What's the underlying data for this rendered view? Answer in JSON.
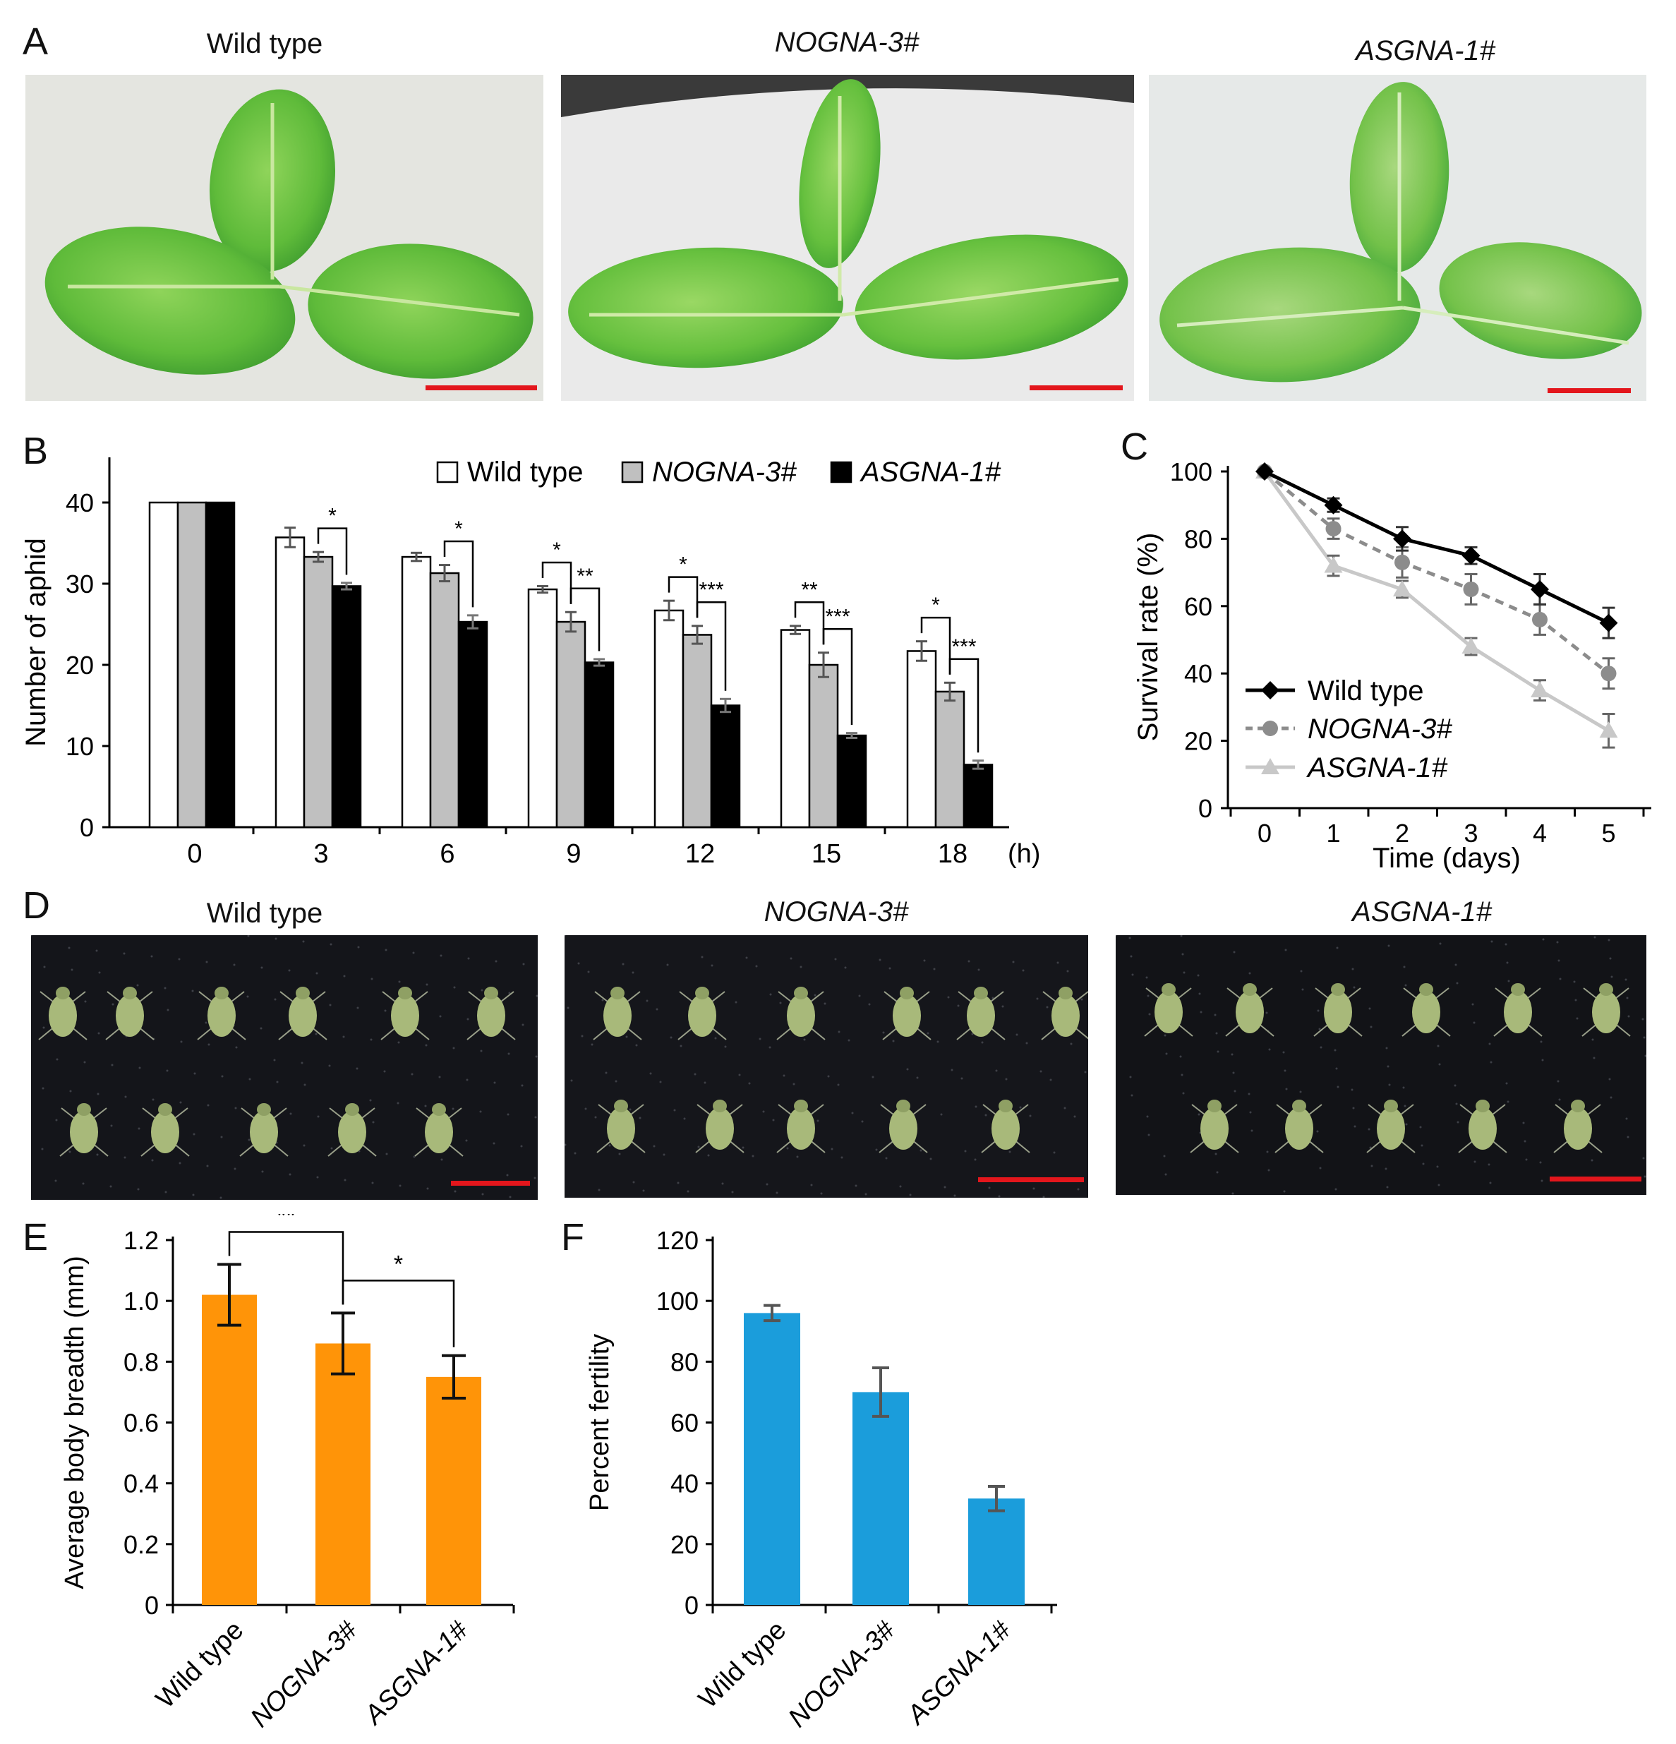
{
  "panels": {
    "A": {
      "letter": "A",
      "titles": [
        "Wild type",
        "NOGNA-3#",
        "ASGNA-1#"
      ]
    },
    "D": {
      "letter": "D",
      "titles": [
        "Wild type",
        "NOGNA-3#",
        "ASGNA-1#"
      ]
    }
  },
  "chart_data": [
    {
      "panel": "B",
      "type": "bar",
      "letter": "B",
      "categories": [
        "0",
        "3",
        "6",
        "9",
        "12",
        "15",
        "18"
      ],
      "x_unit": "(h)",
      "ylabel": "Number of aphid",
      "ylim": [
        0,
        40
      ],
      "yticks": [
        0,
        10,
        20,
        30,
        40
      ],
      "series": [
        {
          "name": "Wild type",
          "color": "#ffffff",
          "values": [
            40,
            35.7,
            33.3,
            29.3,
            26.7,
            24.3,
            21.7
          ],
          "err": [
            0,
            1.2,
            0.5,
            0.4,
            1.2,
            0.5,
            1.2
          ]
        },
        {
          "name": "NOGNA-3#",
          "color": "#c0c0c0",
          "values": [
            40,
            33.3,
            31.3,
            25.3,
            23.7,
            20,
            16.7
          ],
          "err": [
            0,
            0.6,
            1.0,
            1.2,
            1.1,
            1.5,
            1.1
          ]
        },
        {
          "name": "ASGNA-1#",
          "color": "#000000",
          "values": [
            40,
            29.7,
            25.3,
            20.3,
            15,
            11.3,
            7.7
          ],
          "err": [
            0,
            0.4,
            0.8,
            0.4,
            0.8,
            0.3,
            0.5
          ]
        }
      ],
      "significance": [
        {
          "cat": 1,
          "pairs": [
            [
              "NOGNA-3#",
              "ASGNA-1#",
              "*"
            ]
          ]
        },
        {
          "cat": 2,
          "pairs": [
            [
              "NOGNA-3#",
              "ASGNA-1#",
              "*"
            ]
          ]
        },
        {
          "cat": 3,
          "pairs": [
            [
              "Wild type",
              "NOGNA-3#",
              "*"
            ],
            [
              "NOGNA-3#",
              "ASGNA-1#",
              "**"
            ]
          ]
        },
        {
          "cat": 4,
          "pairs": [
            [
              "Wild type",
              "NOGNA-3#",
              "*"
            ],
            [
              "NOGNA-3#",
              "ASGNA-1#",
              "***"
            ]
          ]
        },
        {
          "cat": 5,
          "pairs": [
            [
              "Wild type",
              "NOGNA-3#",
              "**"
            ],
            [
              "NOGNA-3#",
              "ASGNA-1#",
              "***"
            ]
          ]
        },
        {
          "cat": 6,
          "pairs": [
            [
              "Wild type",
              "NOGNA-3#",
              "*"
            ],
            [
              "NOGNA-3#",
              "ASGNA-1#",
              "***"
            ]
          ]
        }
      ],
      "legend": "top-right"
    },
    {
      "panel": "C",
      "type": "line",
      "letter": "C",
      "x": [
        0,
        1,
        2,
        3,
        4,
        5
      ],
      "xlabel": "Time (days)",
      "ylabel": "Survival rate (%)",
      "ylim": [
        0,
        100
      ],
      "yticks": [
        0,
        20,
        40,
        60,
        80,
        100
      ],
      "series": [
        {
          "name": "Wild type",
          "color": "#000000",
          "marker": "diamond",
          "dash": "solid",
          "values": [
            100,
            90,
            80,
            75,
            65,
            55
          ],
          "err": [
            0,
            2,
            3.5,
            2.5,
            4.5,
            4.5
          ]
        },
        {
          "name": "NOGNA-3#",
          "color": "#8c8c8c",
          "marker": "circle",
          "dash": "dashed",
          "values": [
            100,
            83,
            73,
            65,
            56,
            40
          ],
          "err": [
            0,
            3,
            4.5,
            4.5,
            4.5,
            4.5
          ]
        },
        {
          "name": "ASGNA-1#",
          "color": "#c8c8c8",
          "marker": "triangle",
          "dash": "solid",
          "values": [
            100,
            72,
            65,
            48,
            35,
            23
          ],
          "err": [
            0,
            3,
            2.5,
            2.5,
            3,
            5
          ]
        }
      ],
      "legend": "bottom-left"
    },
    {
      "panel": "E",
      "type": "bar",
      "letter": "E",
      "categories": [
        "Wild type",
        "NOGNA-3#",
        "ASGNA-1#"
      ],
      "ylabel": "Average body breadth (mm)",
      "ylim": [
        0,
        1.2
      ],
      "yticks": [
        "0",
        "0.2",
        "0.4",
        "0.6",
        "0.8",
        "1.0",
        "1.2"
      ],
      "color": "#ff9408",
      "values": [
        1.02,
        0.86,
        0.75
      ],
      "err": [
        0.1,
        0.1,
        0.07
      ],
      "significance": [
        [
          0,
          1,
          "**"
        ],
        [
          1,
          2,
          "*"
        ]
      ]
    },
    {
      "panel": "F",
      "type": "bar",
      "letter": "F",
      "categories": [
        "Wild type",
        "NOGNA-3#",
        "ASGNA-1#"
      ],
      "ylabel": "Percent  fertility",
      "ylim": [
        0,
        120
      ],
      "yticks": [
        "0",
        "20",
        "40",
        "60",
        "80",
        "100",
        "120"
      ],
      "color": "#1b9ddb",
      "values": [
        96,
        70,
        35
      ],
      "err": [
        2.5,
        8,
        4
      ]
    }
  ]
}
